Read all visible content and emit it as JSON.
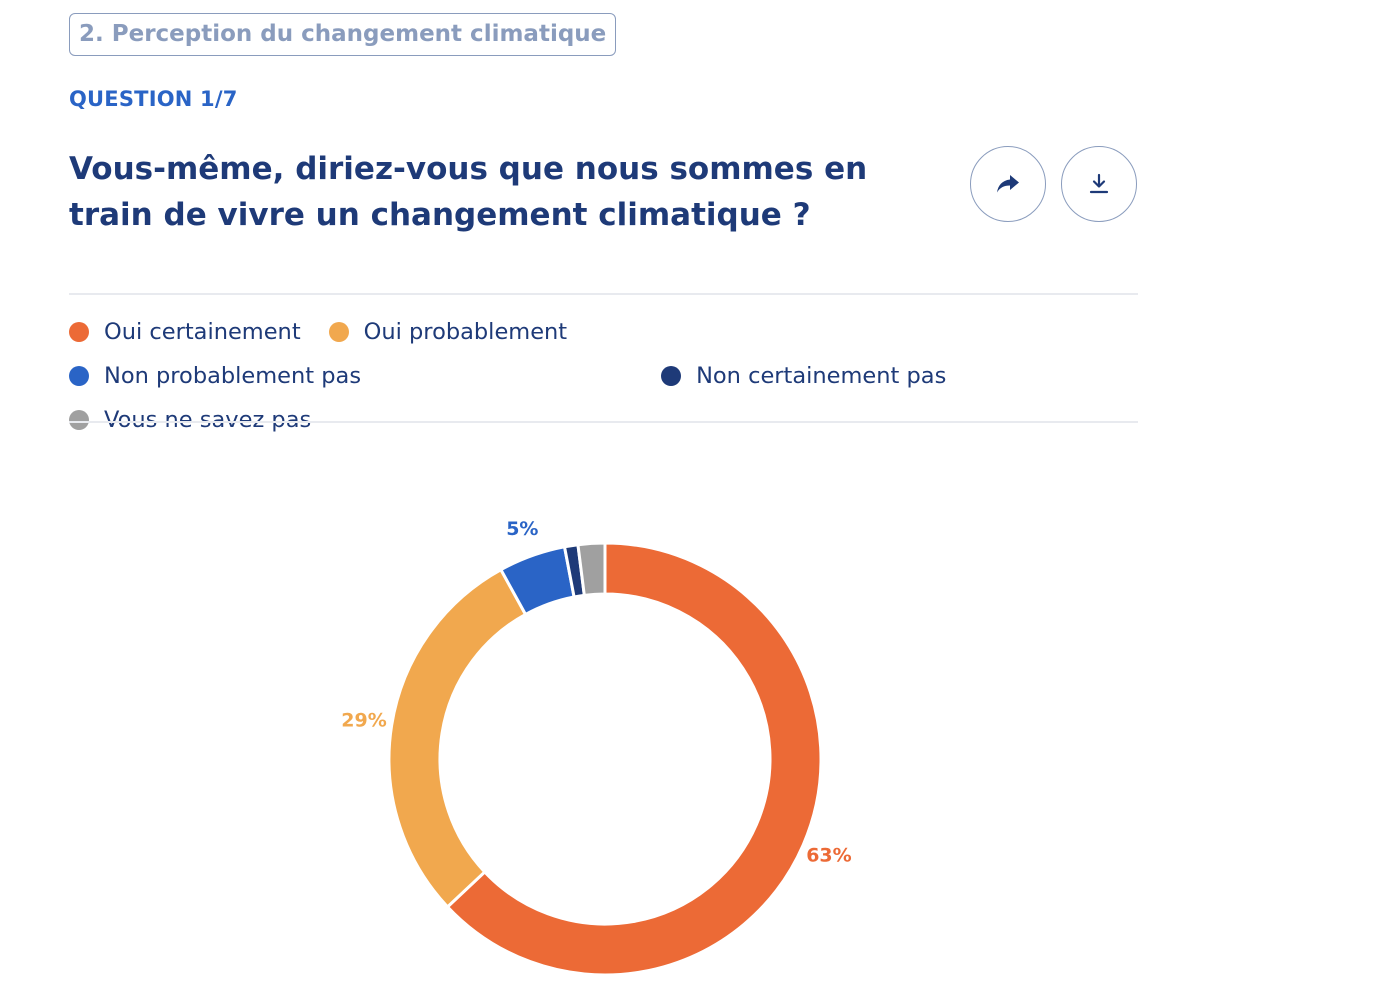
{
  "section": {
    "label": "2. Perception du changement climatique"
  },
  "question": {
    "counter": "QUESTION 1/7",
    "title": "Vous-même, diriez-vous que nous sommes en train de vivre un changement climatique ?"
  },
  "actions": {
    "share_icon": "share-arrow-icon",
    "download_icon": "download-icon"
  },
  "colors": {
    "title": "#1e3a78",
    "accent": "#2a64c6",
    "muted": "#8a9cbd"
  },
  "chart_data": {
    "type": "pie",
    "style": "donut",
    "title": "",
    "legend_position": "top",
    "categories": [
      "Oui certainement",
      "Oui probablement",
      "Non probablement pas",
      "Non certainement pas",
      "Vous ne savez pas"
    ],
    "values": [
      63,
      29,
      5,
      1,
      2
    ],
    "colors": [
      "#ec6a36",
      "#f1a84e",
      "#2a64c6",
      "#1e3a78",
      "#a0a0a0"
    ],
    "data_labels": [
      "63%",
      "29%",
      "5%",
      "",
      ""
    ]
  }
}
